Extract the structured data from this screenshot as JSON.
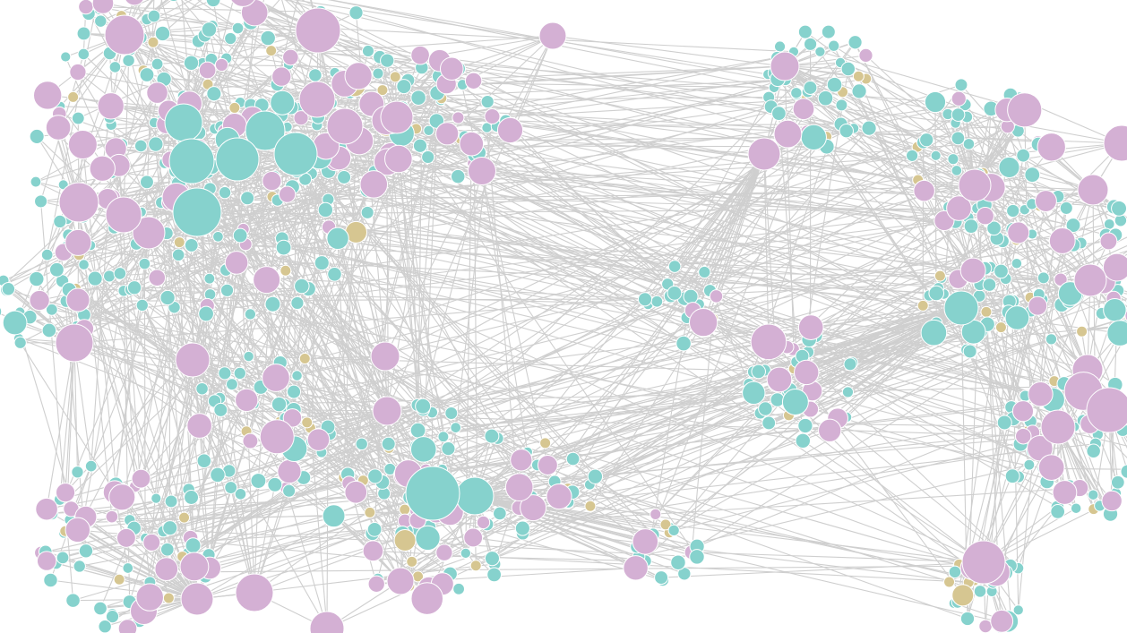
{
  "graph": {
    "type": "force-directed network",
    "labels_shown": false,
    "colors": {
      "background": "#ffffff",
      "edge": "#cfcfcf",
      "group_teal": "#86d2cd",
      "group_pink": "#d4b0d4",
      "group_tan": "#d6c691"
    },
    "node_groups": [
      "teal",
      "pink",
      "tan"
    ]
  }
}
